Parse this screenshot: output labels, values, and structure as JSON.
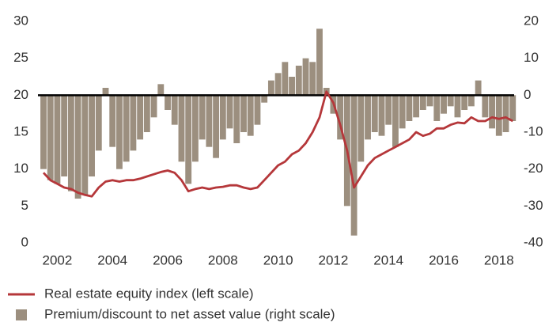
{
  "chart_data": {
    "type": "combo",
    "x": [
      2001.5,
      2001.75,
      2002,
      2002.25,
      2002.5,
      2002.75,
      2003,
      2003.25,
      2003.5,
      2003.75,
      2004,
      2004.25,
      2004.5,
      2004.75,
      2005,
      2005.25,
      2005.5,
      2005.75,
      2006,
      2006.25,
      2006.5,
      2006.75,
      2007,
      2007.25,
      2007.5,
      2007.75,
      2008,
      2008.25,
      2008.5,
      2008.75,
      2009,
      2009.25,
      2009.5,
      2009.75,
      2010,
      2010.25,
      2010.5,
      2010.75,
      2011,
      2011.25,
      2011.5,
      2011.75,
      2012,
      2012.25,
      2012.5,
      2012.75,
      2013,
      2013.25,
      2013.5,
      2013.75,
      2014,
      2014.25,
      2014.5,
      2014.75,
      2015,
      2015.25,
      2015.5,
      2015.75,
      2016,
      2016.25,
      2016.5,
      2016.75,
      2017,
      2017.25,
      2017.5,
      2017.75,
      2018,
      2018.25,
      2018.5
    ],
    "series": [
      {
        "name": "Premium/discount to net asset value (right scale)",
        "type": "bar",
        "axis": "y2",
        "color": "#9c8f7f",
        "values": [
          -20,
          -23,
          -24,
          -22,
          -26,
          -28,
          -27,
          -22,
          -15,
          2,
          -14,
          -20,
          -18,
          -15,
          -12,
          -10,
          -6,
          3,
          -4,
          -8,
          -18,
          -24,
          -18,
          -12,
          -14,
          -17,
          -12,
          -9,
          -13,
          -10,
          -11,
          -8,
          -2,
          4,
          6,
          9,
          5,
          8,
          10,
          9,
          18,
          2,
          -5,
          -12,
          -30,
          -38,
          -18,
          -12,
          -10,
          -11,
          -8,
          -14,
          -9,
          -7,
          -6,
          -4,
          -3,
          -7,
          -5,
          -3,
          -6,
          -4,
          -3,
          4,
          -6,
          -9,
          -11,
          -10,
          -7
        ]
      },
      {
        "name": "Real estate equity index (left scale)",
        "type": "line",
        "axis": "y",
        "color": "#b5373a",
        "values": [
          9.5,
          8.5,
          8,
          7.5,
          7.3,
          6.8,
          6.5,
          6.3,
          7.5,
          8.3,
          8.5,
          8.3,
          8.5,
          8.5,
          8.7,
          9,
          9.3,
          9.6,
          9.8,
          9.5,
          8.5,
          7,
          7.3,
          7.5,
          7.3,
          7.5,
          7.6,
          7.8,
          7.8,
          7.5,
          7.3,
          7.5,
          8.5,
          9.5,
          10.5,
          11,
          12,
          12.5,
          13.5,
          15,
          17,
          20.5,
          19,
          16,
          12.5,
          7.5,
          9,
          10.5,
          11.5,
          12,
          12.5,
          13,
          13.5,
          14,
          15,
          14.5,
          14.8,
          15.5,
          15.5,
          16,
          16.3,
          16.2,
          17,
          16.5,
          16.5,
          17,
          16.8,
          17,
          16.5
        ]
      }
    ],
    "xlim": [
      2001.3,
      2018.55
    ],
    "xticks": [
      2002,
      2004,
      2006,
      2008,
      2010,
      2012,
      2014,
      2016,
      2018
    ],
    "ylim": [
      0,
      30
    ],
    "yticks": [
      0,
      5,
      10,
      15,
      20,
      25,
      30
    ],
    "y2lim": [
      -40,
      20
    ],
    "y2ticks": [
      -40,
      -30,
      -20,
      -10,
      0,
      10,
      20
    ]
  }
}
